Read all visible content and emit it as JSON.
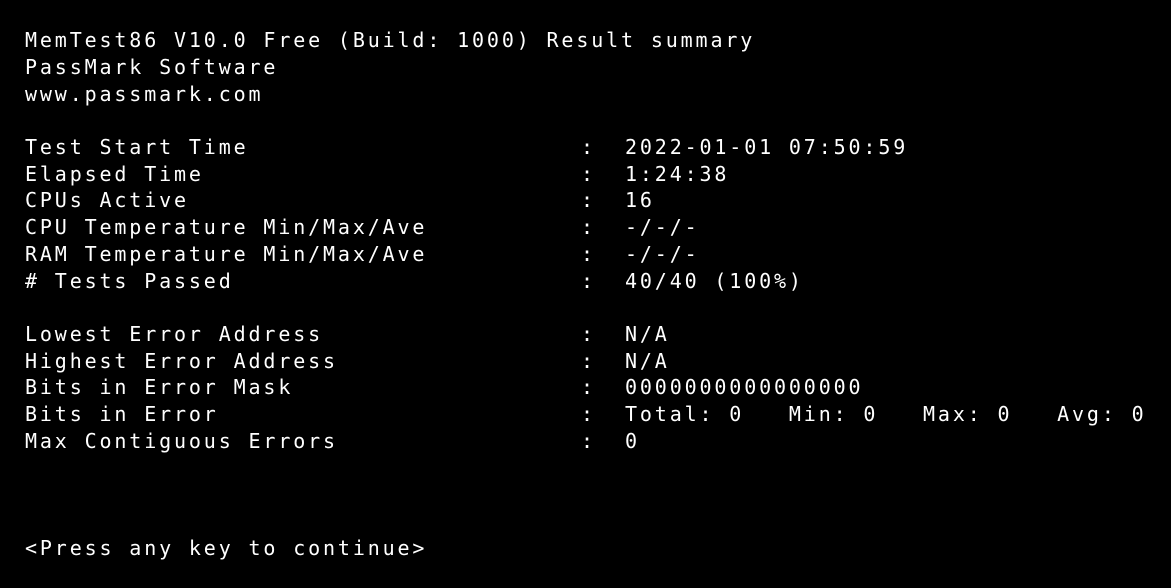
{
  "header": {
    "title": "MemTest86 V10.0 Free (Build: 1000) Result summary",
    "company": "PassMark Software",
    "website": "www.passmark.com"
  },
  "summary": [
    {
      "label": "Test Start Time",
      "value": "2022-01-01 07:50:59"
    },
    {
      "label": "Elapsed Time",
      "value": "1:24:38"
    },
    {
      "label": "CPUs Active",
      "value": "16"
    },
    {
      "label": "CPU Temperature Min/Max/Ave",
      "value": "-/-/-"
    },
    {
      "label": "RAM Temperature Min/Max/Ave",
      "value": "-/-/-"
    },
    {
      "label": "# Tests Passed",
      "value": "40/40 (100%)"
    }
  ],
  "errors": [
    {
      "label": "Lowest Error Address",
      "value": "N/A"
    },
    {
      "label": "Highest Error Address",
      "value": "N/A"
    },
    {
      "label": "Bits in Error Mask",
      "value": "0000000000000000"
    },
    {
      "label": "Bits in Error",
      "value": "Total: 0   Min: 0   Max: 0   Avg: 0"
    },
    {
      "label": "Max Contiguous Errors",
      "value": "0"
    }
  ],
  "separator": ":",
  "prompt": "<Press any key to continue>"
}
